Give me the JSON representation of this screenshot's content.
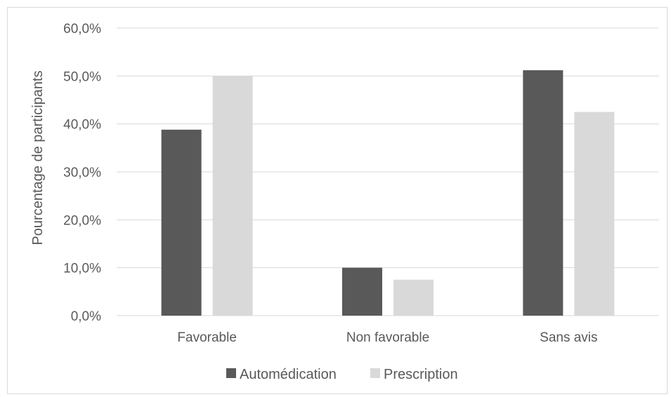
{
  "chart_data": {
    "type": "bar",
    "title": "",
    "xlabel": "",
    "ylabel": "Pourcentage de participants",
    "ylim": [
      0,
      60
    ],
    "yticks": [
      0,
      10,
      20,
      30,
      40,
      50,
      60
    ],
    "ytick_labels": [
      "0,0%",
      "10,0%",
      "20,0%",
      "30,0%",
      "40,0%",
      "50,0%",
      "60,0%"
    ],
    "categories": [
      "Favorable",
      "Non favorable",
      "Sans avis"
    ],
    "series": [
      {
        "name": "Automédication",
        "color": "#595959",
        "values": [
          38.8,
          10.0,
          51.2
        ]
      },
      {
        "name": "Prescription",
        "color": "#d9d9d9",
        "values": [
          50.0,
          7.5,
          42.5
        ]
      }
    ],
    "grid": true,
    "legend": "bottom"
  }
}
